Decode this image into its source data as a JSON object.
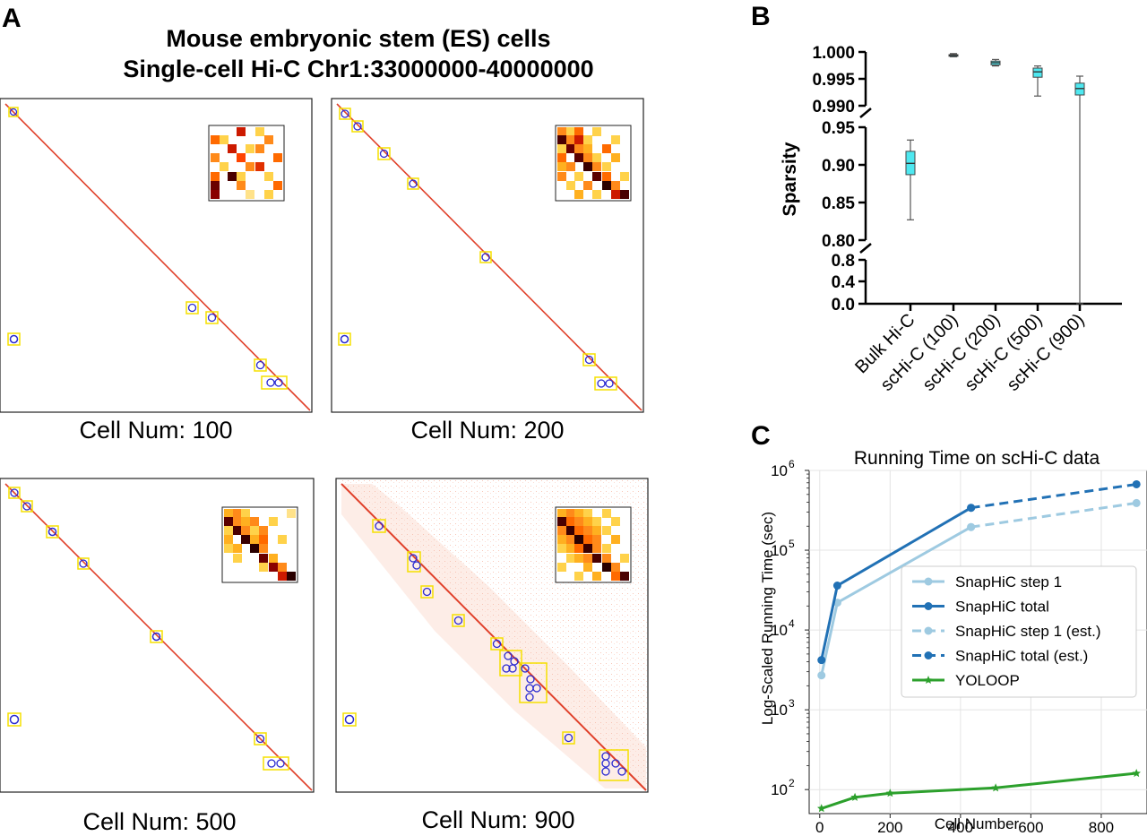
{
  "panel_a": {
    "letter": "A",
    "title_line1": "Mouse embryonic stem (ES) cells",
    "title_line2": "Single-cell Hi-C Chr1:33000000-40000000",
    "heatmaps": [
      {
        "caption": "Cell Num: 100"
      },
      {
        "caption": "Cell Num: 200"
      },
      {
        "caption": "Cell Num: 500"
      },
      {
        "caption": "Cell Num: 900"
      }
    ]
  },
  "panel_b": {
    "letter": "B",
    "ylabel": "Sparsity",
    "ticks_top": [
      "1.000",
      "0.995",
      "0.990"
    ],
    "ticks_mid": [
      "0.95",
      "0.90",
      "0.85",
      "0.80"
    ],
    "ticks_bot": [
      "0.8",
      "0.4",
      "0.0"
    ],
    "categories": [
      "Bulk Hi-C",
      "scHi-C (100)",
      "scHi-C (200)",
      "scHi-C (500)",
      "scHi-C (900)"
    ]
  },
  "panel_c": {
    "letter": "C",
    "title": "Running Time on scHi-C data",
    "xlabel": "Cell Number",
    "ylabel": "Log-Scaled Running Time (sec)",
    "x_ticks": [
      "0",
      "200",
      "400",
      "600",
      "800"
    ],
    "y_ticks": [
      "10",
      "10",
      "10",
      "10",
      "10"
    ],
    "y_exps": [
      "2",
      "3",
      "4",
      "5",
      "6"
    ]
  },
  "chart_data": [
    {
      "type": "box",
      "ylabel": "Sparsity",
      "categories": [
        "Bulk Hi-C",
        "scHi-C (100)",
        "scHi-C (200)",
        "scHi-C (500)",
        "scHi-C (900)"
      ],
      "boxes": [
        {
          "min": 0.827,
          "q1": 0.887,
          "median": 0.902,
          "q3": 0.918,
          "max": 0.933
        },
        {
          "min": 0.9991,
          "q1": 0.9992,
          "median": 0.9994,
          "q3": 0.9995,
          "max": 0.9997
        },
        {
          "min": 0.9974,
          "q1": 0.9976,
          "median": 0.998,
          "q3": 0.9983,
          "max": 0.9986
        },
        {
          "min": 0.9918,
          "q1": 0.9953,
          "median": 0.9963,
          "q3": 0.997,
          "max": 0.9974
        },
        {
          "min": 0.9899,
          "q1": 0.992,
          "median": 0.9932,
          "q3": 0.9942,
          "max": 0.9955
        }
      ],
      "axis_segments": [
        [
          0.99,
          1.0
        ],
        [
          0.8,
          0.95
        ],
        [
          0.0,
          0.8
        ]
      ]
    },
    {
      "type": "line",
      "title": "Running Time on scHi-C data",
      "xlabel": "Cell Number",
      "ylabel": "Log-Scaled Running Time (sec)",
      "y_scale": "log",
      "xlim": [
        -30,
        930
      ],
      "ylim": [
        50,
        1000000
      ],
      "grid": true,
      "legend_position": "center-right",
      "series": [
        {
          "name": "SnapHiC step 1",
          "color": "#9ecae1",
          "dashed": false,
          "x": [
            5,
            50,
            430
          ],
          "y": [
            2700,
            22000,
            195000
          ]
        },
        {
          "name": "SnapHiC total",
          "color": "#2171b5",
          "dashed": false,
          "x": [
            5,
            50,
            430
          ],
          "y": [
            4200,
            36000,
            340000
          ]
        },
        {
          "name": "SnapHiC step 1 (est.)",
          "color": "#9ecae1",
          "dashed": true,
          "x": [
            430,
            900
          ],
          "y": [
            195000,
            390000
          ]
        },
        {
          "name": "SnapHiC total (est.)",
          "color": "#2171b5",
          "dashed": true,
          "x": [
            430,
            900
          ],
          "y": [
            340000,
            670000
          ]
        },
        {
          "name": "YOLOOP",
          "color": "#2ca02c",
          "dashed": false,
          "marker": "star",
          "x": [
            5,
            100,
            200,
            500,
            900
          ],
          "y": [
            58,
            80,
            90,
            105,
            160
          ]
        }
      ]
    }
  ]
}
